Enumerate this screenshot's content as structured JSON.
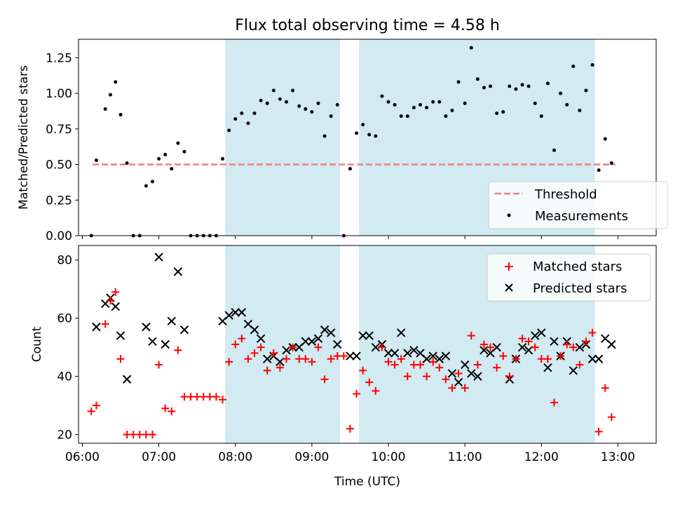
{
  "title": "Flux total observing time = 4.58 h",
  "colors": {
    "threshold": "#f08080",
    "measurement": "#000000",
    "matched": "#ff0000",
    "predicted": "#000000",
    "shade": "#add8e6"
  },
  "chart_data": [
    {
      "type": "scatter",
      "title": "Flux total observing time = 4.58 h",
      "xlabel": "",
      "ylabel": "Matched/Predicted stars",
      "xlim": [
        5.95,
        13.5
      ],
      "ylim": [
        0,
        1.38
      ],
      "yticks": [
        0.0,
        0.25,
        0.5,
        0.75,
        1.0,
        1.25
      ],
      "ytick_labels": [
        "0.00",
        "0.25",
        "0.50",
        "0.75",
        "1.00",
        "1.25"
      ],
      "grid": false,
      "legend_position": "bottom-right",
      "shaded_x_ranges": [
        [
          "07:52",
          "09:22"
        ],
        [
          "09:37",
          "12:42"
        ]
      ],
      "threshold": {
        "name": "Threshold",
        "y": 0.5,
        "x_range": [
          "06:08",
          "12:58"
        ]
      },
      "series": [
        {
          "name": "Measurements",
          "x": [
            "06:07",
            "06:11",
            "06:18",
            "06:22",
            "06:26",
            "06:30",
            "06:35",
            "06:40",
            "06:45",
            "06:50",
            "06:55",
            "07:00",
            "07:05",
            "07:10",
            "07:15",
            "07:20",
            "07:25",
            "07:30",
            "07:35",
            "07:40",
            "07:45",
            "07:50",
            "07:55",
            "08:00",
            "08:05",
            "08:10",
            "08:15",
            "08:20",
            "08:25",
            "08:30",
            "08:35",
            "08:40",
            "08:45",
            "08:50",
            "08:55",
            "09:00",
            "09:05",
            "09:10",
            "09:15",
            "09:20",
            "09:25",
            "09:30",
            "09:35",
            "09:40",
            "09:45",
            "09:50",
            "09:55",
            "10:00",
            "10:05",
            "10:10",
            "10:15",
            "10:20",
            "10:25",
            "10:30",
            "10:35",
            "10:40",
            "10:45",
            "10:50",
            "10:55",
            "11:00",
            "11:05",
            "11:10",
            "11:15",
            "11:20",
            "11:25",
            "11:30",
            "11:35",
            "11:40",
            "11:45",
            "11:50",
            "11:55",
            "12:00",
            "12:05",
            "12:10",
            "12:15",
            "12:20",
            "12:25",
            "12:30",
            "12:35",
            "12:40",
            "12:45",
            "12:50",
            "12:55"
          ],
          "y": [
            0.0,
            0.53,
            0.89,
            0.99,
            1.08,
            0.85,
            0.51,
            0.0,
            0.0,
            0.35,
            0.38,
            0.54,
            0.57,
            0.47,
            0.65,
            0.59,
            0.0,
            0.0,
            0.0,
            0.0,
            0.0,
            0.54,
            0.74,
            0.82,
            0.86,
            0.79,
            0.86,
            0.95,
            0.93,
            1.02,
            0.96,
            0.94,
            1.02,
            0.91,
            0.89,
            0.87,
            0.93,
            0.7,
            0.84,
            0.92,
            0.0,
            0.47,
            0.72,
            0.78,
            0.71,
            0.7,
            0.98,
            0.94,
            0.92,
            0.84,
            0.84,
            0.9,
            0.92,
            0.9,
            0.94,
            0.94,
            0.84,
            0.88,
            1.08,
            0.93,
            1.32,
            1.1,
            1.04,
            1.05,
            0.86,
            0.87,
            1.05,
            1.03,
            1.06,
            1.05,
            0.93,
            0.84,
            1.07,
            0.6,
            1.0,
            0.92,
            1.19,
            0.88,
            1.02,
            1.2,
            0.46,
            0.68,
            0.51
          ]
        }
      ]
    },
    {
      "type": "scatter",
      "xlabel": "Time (UTC)",
      "ylabel": "Count",
      "xlim": [
        5.95,
        13.5
      ],
      "ylim": [
        17,
        85
      ],
      "yticks": [
        20,
        40,
        60,
        80
      ],
      "xticks": [
        "06:00",
        "07:00",
        "08:00",
        "09:00",
        "10:00",
        "11:00",
        "12:00",
        "13:00"
      ],
      "grid": false,
      "legend_position": "top-right",
      "shaded_x_ranges": [
        [
          "07:52",
          "09:22"
        ],
        [
          "09:37",
          "12:42"
        ]
      ],
      "x": [
        "06:07",
        "06:11",
        "06:18",
        "06:22",
        "06:26",
        "06:30",
        "06:35",
        "06:40",
        "06:45",
        "06:50",
        "06:55",
        "07:00",
        "07:05",
        "07:10",
        "07:15",
        "07:20",
        "07:25",
        "07:30",
        "07:35",
        "07:40",
        "07:45",
        "07:50",
        "07:55",
        "08:00",
        "08:05",
        "08:10",
        "08:15",
        "08:20",
        "08:25",
        "08:30",
        "08:35",
        "08:40",
        "08:45",
        "08:50",
        "08:55",
        "09:00",
        "09:05",
        "09:10",
        "09:15",
        "09:20",
        "09:25",
        "09:30",
        "09:35",
        "09:40",
        "09:45",
        "09:50",
        "09:55",
        "10:00",
        "10:05",
        "10:10",
        "10:15",
        "10:20",
        "10:25",
        "10:30",
        "10:35",
        "10:40",
        "10:45",
        "10:50",
        "10:55",
        "11:00",
        "11:05",
        "11:10",
        "11:15",
        "11:20",
        "11:25",
        "11:30",
        "11:35",
        "11:40",
        "11:45",
        "11:50",
        "11:55",
        "12:00",
        "12:05",
        "12:10",
        "12:15",
        "12:20",
        "12:25",
        "12:30",
        "12:35",
        "12:40",
        "12:45",
        "12:50",
        "12:55"
      ],
      "series": [
        {
          "name": "Matched stars",
          "values": [
            28,
            30,
            58,
            66,
            69,
            46,
            20,
            20,
            20,
            20,
            20,
            44,
            29,
            28,
            49,
            33,
            33,
            33,
            33,
            33,
            33,
            32,
            45,
            51,
            53,
            46,
            48,
            50,
            42,
            48,
            43,
            46,
            50,
            46,
            46,
            45,
            50,
            39,
            46,
            47,
            47,
            22,
            34,
            42,
            38,
            35,
            50,
            45,
            44,
            46,
            40,
            44,
            44,
            40,
            45,
            43,
            39,
            36,
            41,
            36,
            54,
            44,
            51,
            50,
            43,
            47,
            40,
            46,
            53,
            52,
            50,
            46,
            46,
            31,
            47,
            51,
            50,
            44,
            52,
            55,
            21,
            36,
            26
          ]
        },
        {
          "name": "Predicted stars",
          "values": [
            null,
            57,
            65,
            67,
            64,
            54,
            39,
            null,
            null,
            57,
            52,
            81,
            51,
            59,
            76,
            56,
            null,
            null,
            null,
            null,
            null,
            59,
            61,
            62,
            62,
            58,
            56,
            53,
            46,
            47,
            45,
            49,
            50,
            50,
            52,
            52,
            53,
            56,
            55,
            51,
            null,
            47,
            47,
            54,
            54,
            50,
            51,
            48,
            48,
            55,
            48,
            49,
            48,
            46,
            47,
            46,
            47,
            41,
            38,
            44,
            41,
            40,
            49,
            48,
            50,
            null,
            39,
            46,
            50,
            49,
            54,
            55,
            43,
            52,
            47,
            52,
            42,
            50,
            51,
            46,
            46,
            53,
            51
          ]
        }
      ]
    }
  ]
}
